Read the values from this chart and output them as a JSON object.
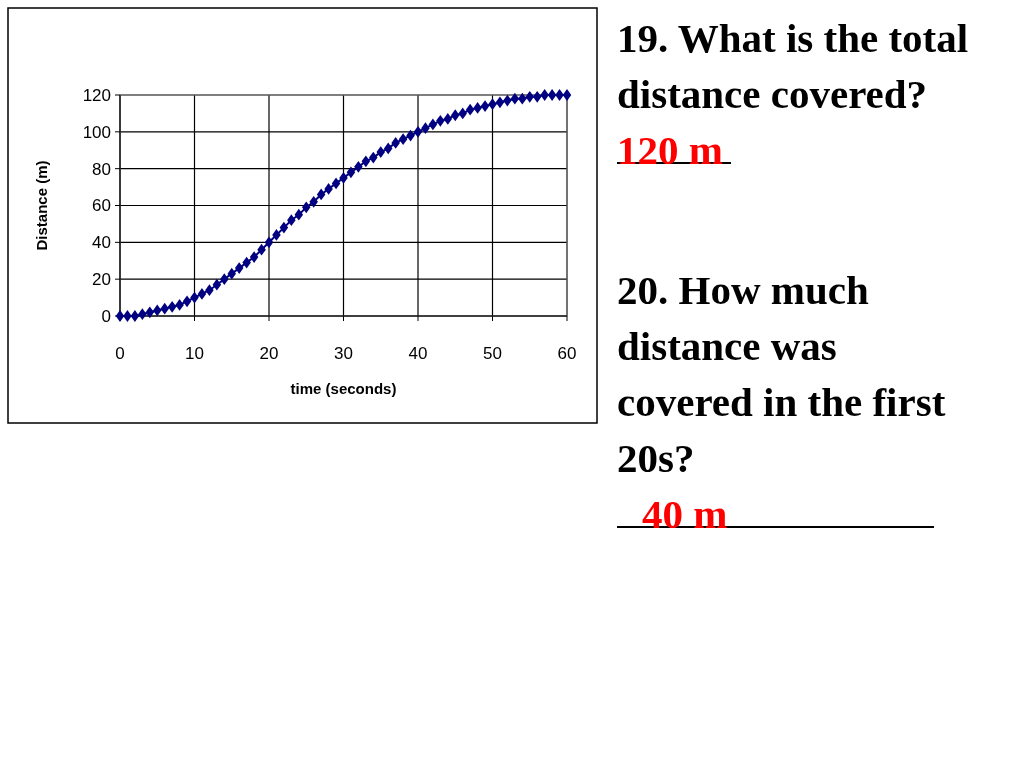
{
  "chart_data": {
    "type": "line",
    "xlabel": "time (seconds)",
    "ylabel": "Distance (m)",
    "x": [
      0,
      1,
      2,
      3,
      4,
      5,
      6,
      7,
      8,
      9,
      10,
      11,
      12,
      13,
      14,
      15,
      16,
      17,
      18,
      19,
      20,
      21,
      22,
      23,
      24,
      25,
      26,
      27,
      28,
      29,
      30,
      31,
      32,
      33,
      34,
      35,
      36,
      37,
      38,
      39,
      40,
      41,
      42,
      43,
      44,
      45,
      46,
      47,
      48,
      49,
      50,
      51,
      52,
      53,
      54,
      55,
      56,
      57,
      58,
      59,
      60
    ],
    "series": [
      {
        "color": "#000080",
        "values": [
          0,
          0,
          0,
          1,
          2,
          3,
          4,
          5,
          6,
          8,
          10,
          12,
          14,
          17,
          20,
          23,
          26,
          29,
          32,
          36,
          40,
          44,
          48,
          52,
          55,
          59,
          62,
          66,
          69,
          72,
          75,
          78,
          81,
          84,
          86,
          89,
          91,
          94,
          96,
          98,
          100,
          102,
          104,
          106,
          107,
          109,
          110,
          112,
          113,
          114,
          115,
          116,
          117,
          118,
          118,
          119,
          119,
          120,
          120,
          120,
          120
        ]
      }
    ],
    "xlim": [
      0,
      60
    ],
    "xticks": [
      0,
      10,
      20,
      30,
      40,
      50,
      60
    ],
    "ylim": [
      0,
      120
    ],
    "yticks": [
      0,
      20,
      40,
      60,
      80,
      100,
      120
    ],
    "grid": true,
    "marker": "diamond",
    "line_style": "solid",
    "annotations": [
      "19. What is the total distance covered?",
      "120 m",
      "20. How much distance was covered in the first 20s?",
      "40 m"
    ]
  }
}
